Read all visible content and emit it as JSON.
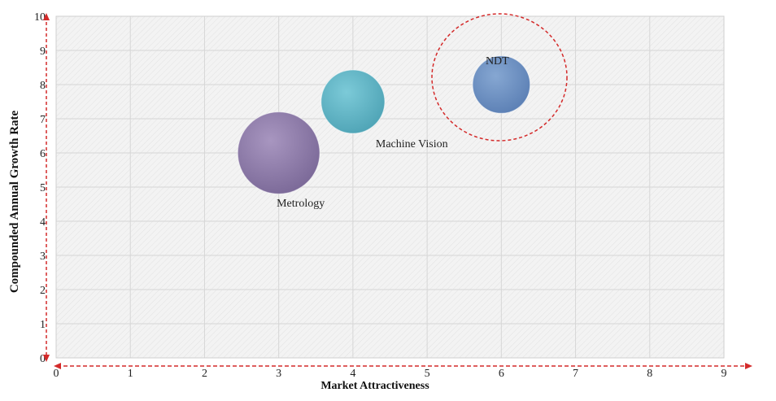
{
  "chart_data": {
    "type": "bubble",
    "xlabel": "Market Attractiveness",
    "ylabel": "Compounded  Annual  Growth Rate",
    "xlim": [
      0,
      9
    ],
    "ylim": [
      0,
      10
    ],
    "x_ticks": [
      "0",
      "1",
      "2",
      "3",
      "4",
      "5",
      "6",
      "7",
      "8",
      "9"
    ],
    "y_ticks": [
      "0",
      "1",
      "2",
      "3",
      "4",
      "5",
      "6",
      "7",
      "8",
      "9",
      "10"
    ],
    "grid": true,
    "points": [
      {
        "label": "Metrology",
        "x": 3,
        "y": 6,
        "size": 1.2,
        "color": "#8b77a8"
      },
      {
        "label": "Machine Vision",
        "x": 4,
        "y": 7.5,
        "size": 0.93,
        "color": "#5fb3c4"
      },
      {
        "label": "NDT",
        "x": 6,
        "y": 8,
        "size": 0.84,
        "color": "#6a8ec2"
      }
    ],
    "highlight": {
      "label": "NDT",
      "color": "#d42a2a"
    },
    "arrow_color": "#d42a2a"
  }
}
